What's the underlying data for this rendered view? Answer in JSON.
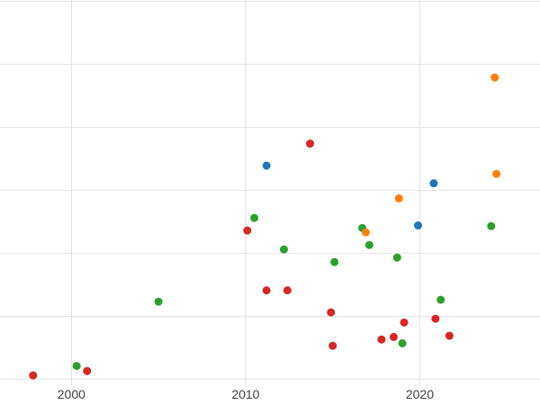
{
  "chart_data": {
    "type": "scatter",
    "title": "",
    "xlabel": "",
    "ylabel": "",
    "legend": "none",
    "grid": true,
    "background_color": "#ffffff",
    "grid_color": "#e2e2e2",
    "tick_label_color": "#404040",
    "x_axis": {
      "min": 1995.9,
      "max": 2026.9,
      "ticks": [
        2000,
        2010,
        2020
      ],
      "tick_labels": [
        "2000",
        "2010",
        "2020"
      ]
    },
    "y_axis": {
      "min": -0.41,
      "max": 6.02,
      "gridline_values": [
        0,
        1,
        2,
        3,
        4,
        5,
        6
      ],
      "tick_labels": []
    },
    "series": [
      {
        "name": "red",
        "color": "#d62728",
        "points": [
          {
            "x": 1997.8,
            "y": 0.06
          },
          {
            "x": 2000.9,
            "y": 0.13
          },
          {
            "x": 2010.1,
            "y": 2.36
          },
          {
            "x": 2011.2,
            "y": 1.41
          },
          {
            "x": 2012.4,
            "y": 1.41
          },
          {
            "x": 2013.7,
            "y": 3.74
          },
          {
            "x": 2014.9,
            "y": 1.06
          },
          {
            "x": 2015.0,
            "y": 0.53
          },
          {
            "x": 2017.8,
            "y": 0.63
          },
          {
            "x": 2018.5,
            "y": 0.67
          },
          {
            "x": 2019.1,
            "y": 0.9
          },
          {
            "x": 2020.9,
            "y": 0.96
          },
          {
            "x": 2021.7,
            "y": 0.69
          }
        ]
      },
      {
        "name": "green",
        "color": "#2ca02c",
        "points": [
          {
            "x": 2000.3,
            "y": 0.21
          },
          {
            "x": 2005.0,
            "y": 1.23
          },
          {
            "x": 2010.5,
            "y": 2.56
          },
          {
            "x": 2012.2,
            "y": 2.06
          },
          {
            "x": 2015.1,
            "y": 1.86
          },
          {
            "x": 2016.7,
            "y": 2.4
          },
          {
            "x": 2017.1,
            "y": 2.13
          },
          {
            "x": 2018.7,
            "y": 1.93
          },
          {
            "x": 2019.0,
            "y": 0.57
          },
          {
            "x": 2021.2,
            "y": 1.26
          },
          {
            "x": 2024.1,
            "y": 2.43
          }
        ]
      },
      {
        "name": "blue",
        "color": "#1f77b4",
        "points": [
          {
            "x": 2011.2,
            "y": 3.39
          },
          {
            "x": 2019.9,
            "y": 2.44
          },
          {
            "x": 2020.8,
            "y": 3.11
          }
        ]
      },
      {
        "name": "orange",
        "color": "#ff7f0e",
        "points": [
          {
            "x": 2016.9,
            "y": 2.33
          },
          {
            "x": 2018.8,
            "y": 2.87
          },
          {
            "x": 2024.3,
            "y": 4.79
          },
          {
            "x": 2024.4,
            "y": 3.26
          }
        ]
      }
    ]
  }
}
